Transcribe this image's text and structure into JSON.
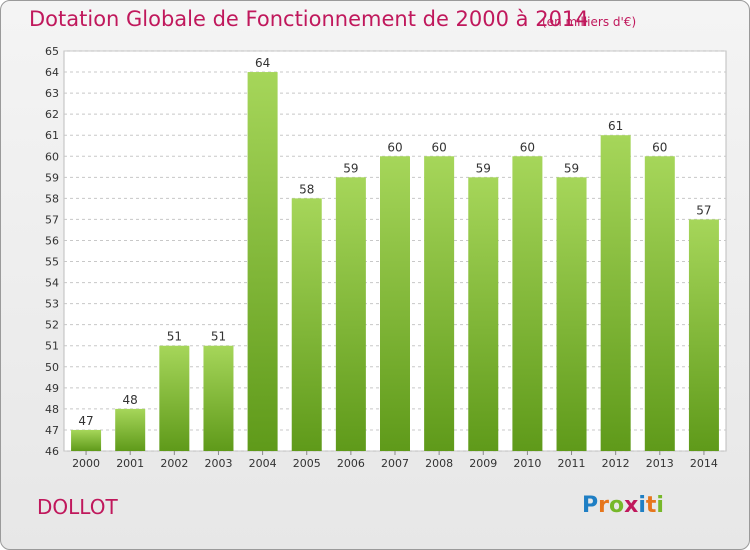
{
  "header": {
    "title": "Dotation Globale de Fonctionnement de 2000 à 2014",
    "unit": "(en milliers d'€)"
  },
  "footer": {
    "commune": "DOLLOT",
    "logo_text": "Proxiti"
  },
  "colors": {
    "title": "#c0185c",
    "bar_light": "#a6d65a",
    "bar_dark": "#5f9a1a",
    "grid": "#c8c8c8"
  },
  "chart_data": {
    "type": "bar",
    "title": "Dotation Globale de Fonctionnement de 2000 à 2014",
    "subtitle": "(en milliers d'€)",
    "xlabel": "",
    "ylabel": "",
    "categories": [
      "2000",
      "2001",
      "2002",
      "2003",
      "2004",
      "2005",
      "2006",
      "2007",
      "2008",
      "2009",
      "2010",
      "2011",
      "2012",
      "2013",
      "2014"
    ],
    "values": [
      47,
      48,
      51,
      51,
      64,
      58,
      59,
      60,
      60,
      59,
      60,
      59,
      61,
      60,
      57
    ],
    "ylim": [
      46,
      65
    ],
    "yticks": [
      46,
      47,
      48,
      49,
      50,
      51,
      52,
      53,
      54,
      55,
      56,
      57,
      58,
      59,
      60,
      61,
      62,
      63,
      64,
      65
    ],
    "grid": true,
    "data_labels": true
  }
}
